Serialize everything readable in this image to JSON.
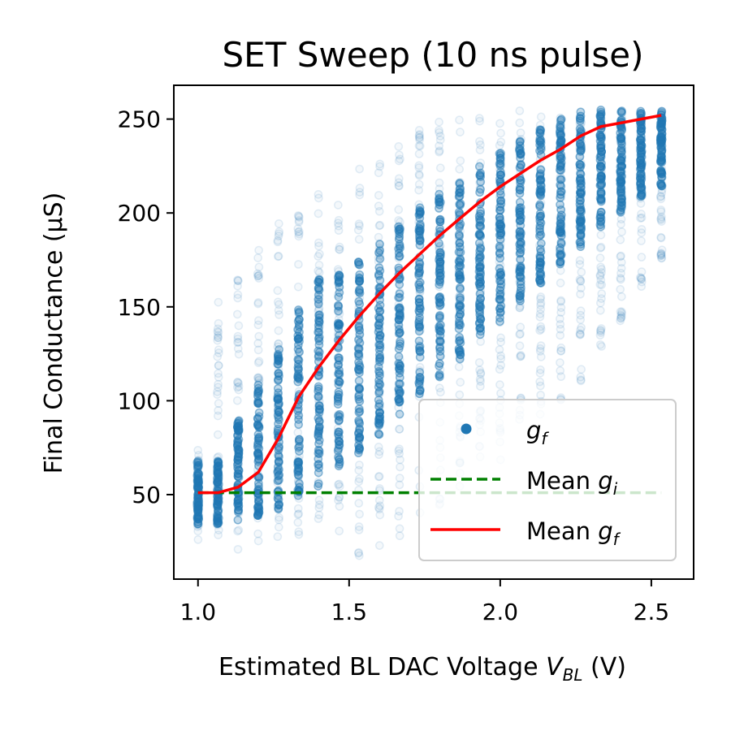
{
  "chart_data": {
    "type": "scatter",
    "title": "SET Sweep (10 ns pulse)",
    "xlabel": {
      "main": "Estimated BL DAC Voltage ",
      "var": "V",
      "sub": "BL",
      "unit": " (V)"
    },
    "ylabel": "Final Conductance (µS)",
    "xlim": [
      0.92,
      2.64
    ],
    "ylim": [
      5,
      268
    ],
    "xticks": [
      1.0,
      1.5,
      2.0,
      2.5
    ],
    "xtick_labels": [
      "1.0",
      "1.5",
      "2.0",
      "2.5"
    ],
    "yticks": [
      50,
      100,
      150,
      200,
      250
    ],
    "ytick_labels": [
      "50",
      "100",
      "150",
      "200",
      "250"
    ],
    "grid": false,
    "legend_position": "lower-right",
    "legend": [
      {
        "prefix": "",
        "var": "g",
        "sub": "f",
        "style": "marker",
        "color": "#1f77b4"
      },
      {
        "prefix": "Mean ",
        "var": "g",
        "sub": "i",
        "style": "dashed",
        "color": "#008000"
      },
      {
        "prefix": "Mean ",
        "var": "g",
        "sub": "f",
        "style": "solid",
        "color": "#ff0000"
      }
    ],
    "x": [
      1.0,
      1.066,
      1.133,
      1.2,
      1.266,
      1.333,
      1.4,
      1.466,
      1.533,
      1.6,
      1.666,
      1.733,
      1.8,
      1.866,
      1.933,
      2.0,
      2.066,
      2.133,
      2.2,
      2.266,
      2.333,
      2.4,
      2.466,
      2.533
    ],
    "gf_dense_range": [
      [
        34,
        68
      ],
      [
        34,
        68
      ],
      [
        36,
        90
      ],
      [
        38,
        110
      ],
      [
        42,
        130
      ],
      [
        48,
        150
      ],
      [
        54,
        165
      ],
      [
        62,
        170
      ],
      [
        72,
        175
      ],
      [
        82,
        185
      ],
      [
        92,
        195
      ],
      [
        102,
        205
      ],
      [
        112,
        210
      ],
      [
        122,
        218
      ],
      [
        132,
        225
      ],
      [
        142,
        232
      ],
      [
        152,
        240
      ],
      [
        162,
        245
      ],
      [
        172,
        250
      ],
      [
        182,
        254
      ],
      [
        192,
        255
      ],
      [
        200,
        255
      ],
      [
        208,
        255
      ],
      [
        214,
        255
      ]
    ],
    "gf_sparse_range": [
      [
        25,
        75
      ],
      [
        25,
        165
      ],
      [
        20,
        170
      ],
      [
        25,
        185
      ],
      [
        25,
        195
      ],
      [
        25,
        205
      ],
      [
        22,
        210
      ],
      [
        22,
        215
      ],
      [
        15,
        228
      ],
      [
        20,
        230
      ],
      [
        25,
        238
      ],
      [
        35,
        245
      ],
      [
        40,
        250
      ],
      [
        48,
        255
      ],
      [
        58,
        255
      ],
      [
        68,
        255
      ],
      [
        80,
        255
      ],
      [
        90,
        255
      ],
      [
        100,
        255
      ],
      [
        110,
        255
      ],
      [
        125,
        255
      ],
      [
        140,
        255
      ],
      [
        160,
        255
      ],
      [
        175,
        255
      ]
    ],
    "series": [
      {
        "name": "Mean g_f",
        "color": "#ff0000",
        "values": [
          51,
          51,
          54,
          62,
          80,
          102,
          118,
          132,
          145,
          157,
          168,
          178,
          188,
          197,
          206,
          214,
          221,
          228,
          234,
          241,
          246,
          248,
          250,
          252
        ]
      },
      {
        "name": "Mean g_i",
        "color": "#008000",
        "values": [
          51,
          51,
          51,
          51,
          51,
          51,
          51,
          51,
          51,
          51,
          51,
          51,
          51,
          51,
          51,
          51,
          51,
          51,
          51,
          51,
          51,
          51,
          51,
          51
        ]
      }
    ]
  }
}
